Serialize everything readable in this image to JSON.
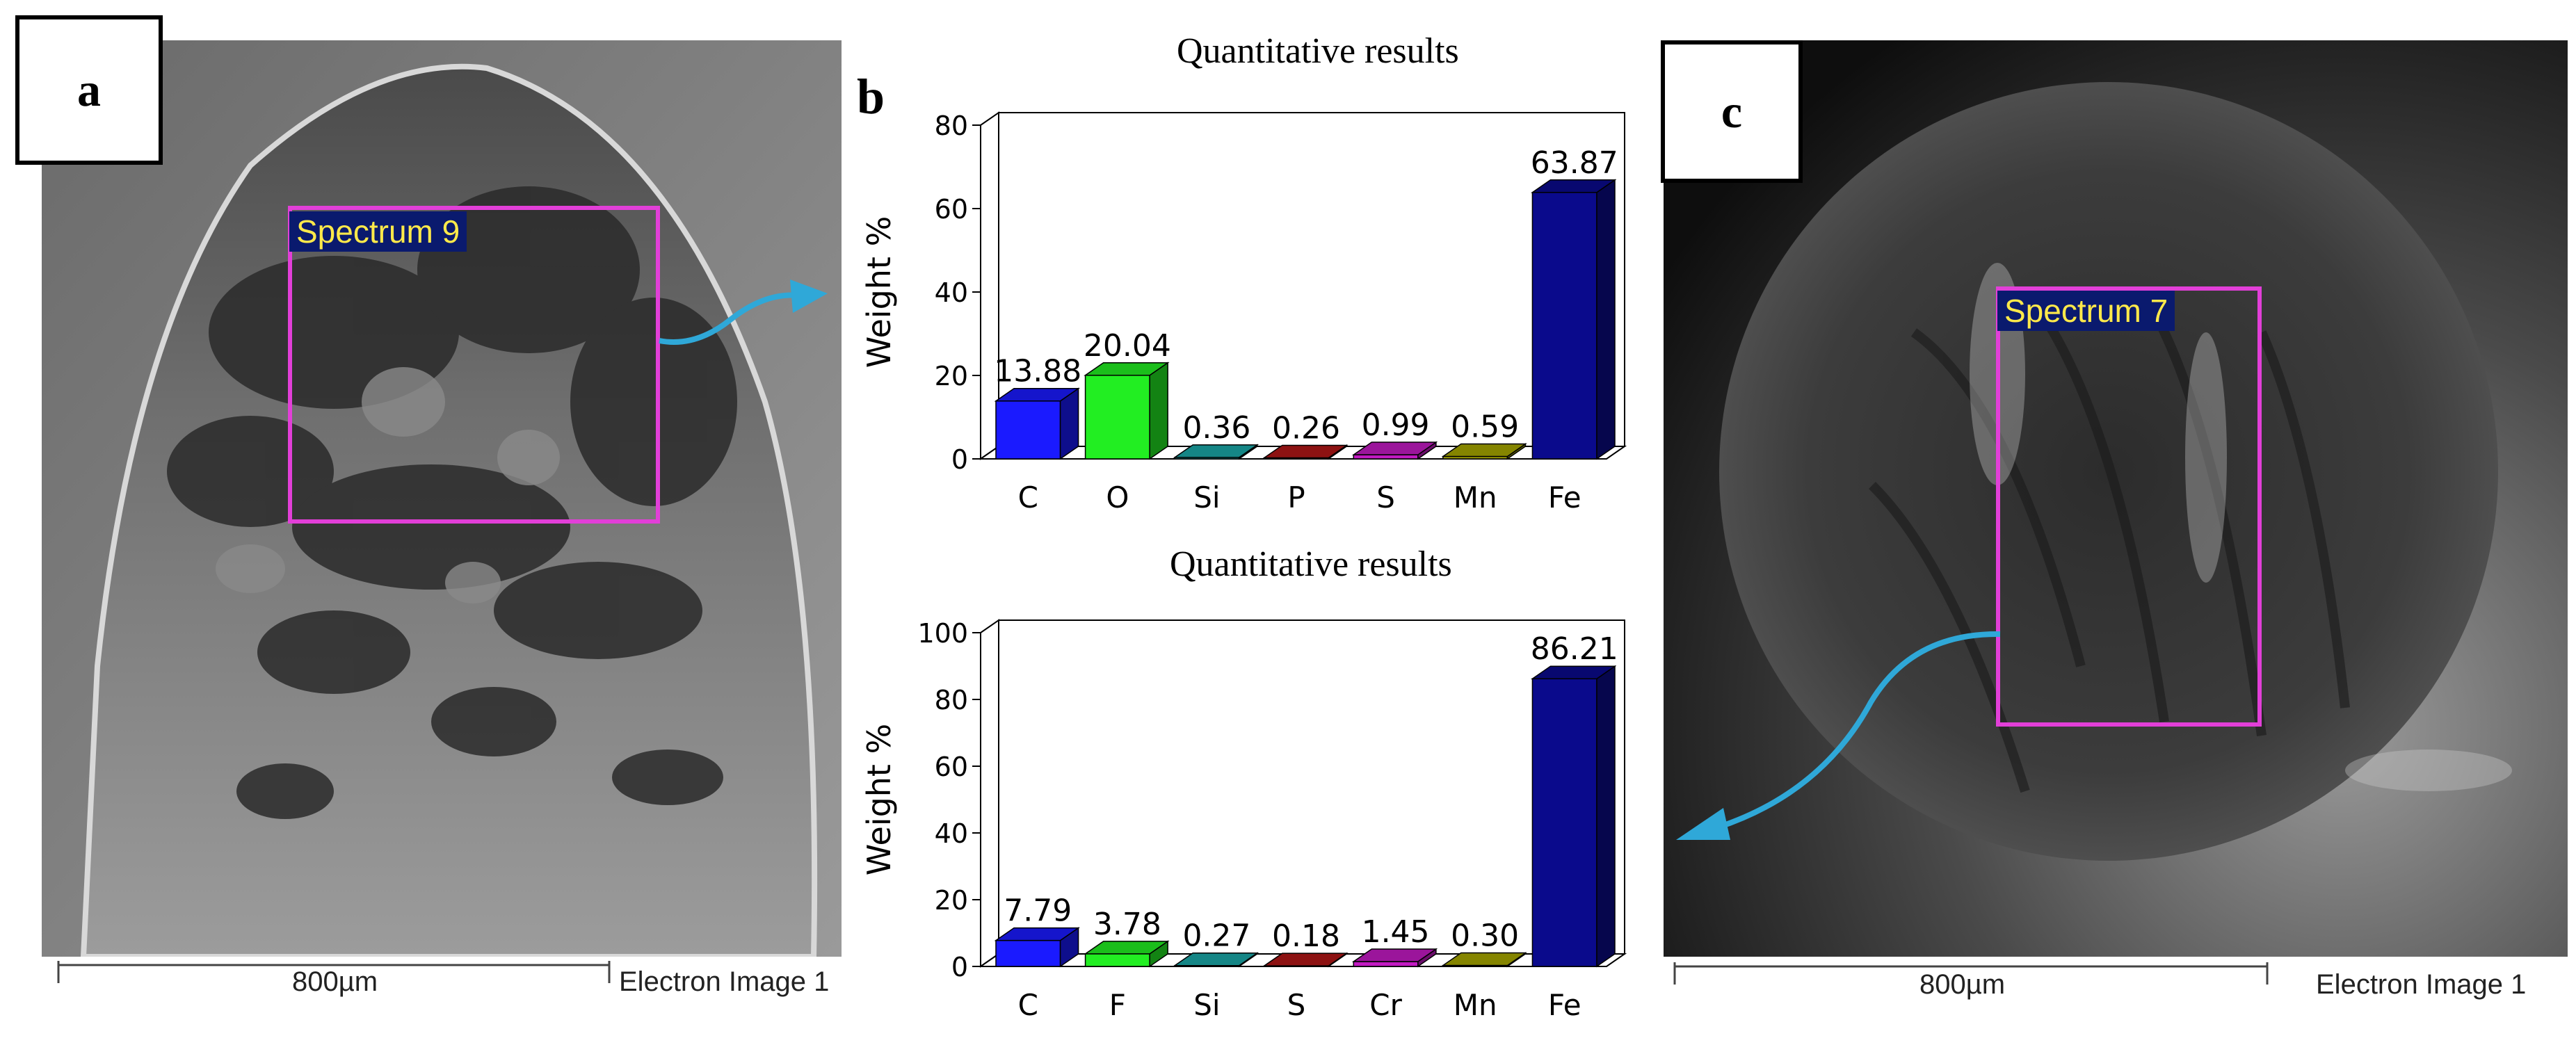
{
  "panels": {
    "a": {
      "label": "a",
      "spectrum_label": "Spectrum 9",
      "scale_label": "800µm",
      "image_label": "Electron Image 1"
    },
    "b": {
      "label": "b"
    },
    "c": {
      "label": "c",
      "spectrum_label": "Spectrum 7",
      "scale_label": "800µm",
      "image_label": "Electron Image 1"
    }
  },
  "colors": {
    "spectrum_box": "#e23fd8",
    "arrow": "#2fa8d8",
    "label_bg": "#0a1a6e",
    "label_text": "#ffe94a"
  },
  "chart_data": [
    {
      "type": "bar",
      "title": "Quantitative results",
      "ylabel": "Weight %",
      "xlabel": "",
      "ylim": [
        0,
        80
      ],
      "yticks": [
        0,
        20,
        40,
        60,
        80
      ],
      "categories": [
        "C",
        "O",
        "Si",
        "P",
        "S",
        "Mn",
        "Fe"
      ],
      "values": [
        13.88,
        20.04,
        0.36,
        0.26,
        0.99,
        0.59,
        63.87
      ],
      "value_labels": [
        "13.88",
        "20.04",
        "0.36",
        "0.26",
        "0.99",
        "0.59",
        "63.87"
      ],
      "bar_colors": [
        "#1a1aff",
        "#22ee22",
        "#1aa7a7",
        "#b01616",
        "#c21ac2",
        "#a6a600",
        "#0a0a8c"
      ]
    },
    {
      "type": "bar",
      "title": "Quantitative results",
      "ylabel": "Weight %",
      "xlabel": "",
      "ylim": [
        0,
        100
      ],
      "yticks": [
        0,
        20,
        40,
        60,
        80,
        100
      ],
      "categories": [
        "C",
        "F",
        "Si",
        "S",
        "Cr",
        "Mn",
        "Fe"
      ],
      "values": [
        7.79,
        3.78,
        0.27,
        0.18,
        1.45,
        0.3,
        86.21
      ],
      "value_labels": [
        "7.79",
        "3.78",
        "0.27",
        "0.18",
        "1.45",
        "0.30",
        "86.21"
      ],
      "bar_colors": [
        "#1a1aff",
        "#22ee22",
        "#1aa7a7",
        "#b01616",
        "#c21ac2",
        "#a6a600",
        "#0a0a8c"
      ]
    }
  ]
}
